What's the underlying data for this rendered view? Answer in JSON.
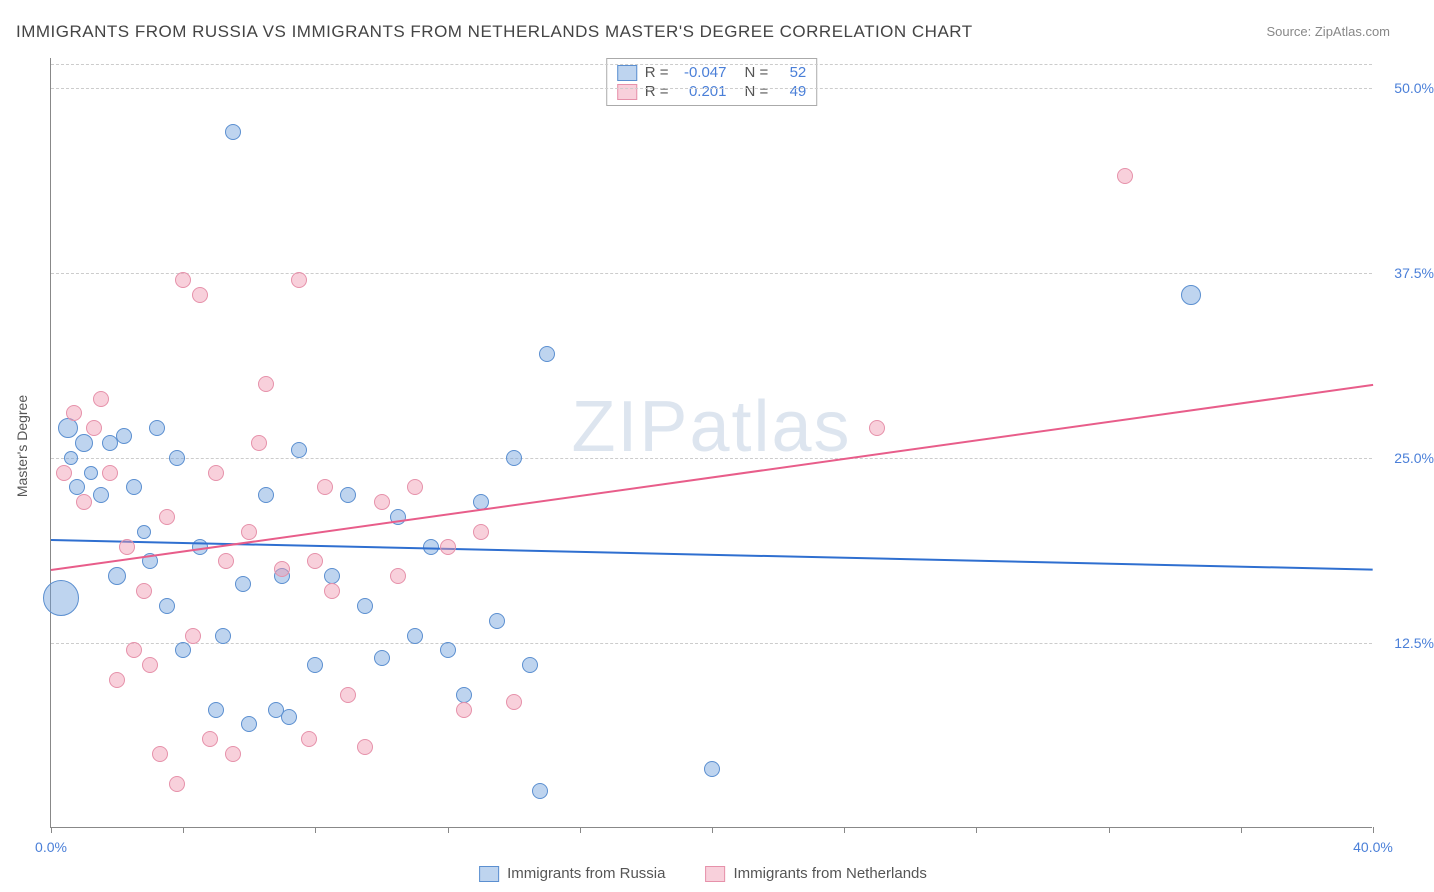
{
  "title": "IMMIGRANTS FROM RUSSIA VS IMMIGRANTS FROM NETHERLANDS MASTER'S DEGREE CORRELATION CHART",
  "source": "Source: ZipAtlas.com",
  "watermark_a": "ZIP",
  "watermark_b": "atlas",
  "y_axis_label": "Master's Degree",
  "chart": {
    "type": "scatter",
    "x_min": 0,
    "x_max": 40,
    "y_min": 0,
    "y_max": 52,
    "x_tick_step": 4,
    "y_ticks": [
      12.5,
      25.0,
      37.5,
      50.0
    ],
    "y_tick_labels": [
      "12.5%",
      "25.0%",
      "37.5%",
      "50.0%"
    ],
    "x_labels_shown": {
      "0": "0.0%",
      "40": "40.0%"
    },
    "grid_color": "#cccccc",
    "axis_color": "#888888",
    "label_color": "#4a7fd8",
    "background_color": "#ffffff",
    "series": [
      {
        "name": "Immigrants from Russia",
        "short": "russia",
        "marker_fill": "rgba(110,160,220,0.45)",
        "marker_stroke": "#5b8fd0",
        "trend_color": "#2f6fd0",
        "R": "-0.047",
        "N": "52",
        "trend": {
          "x1": 0,
          "y1": 19.5,
          "x2": 40,
          "y2": 17.5
        },
        "points": [
          {
            "x": 0.3,
            "y": 15.5,
            "r": 18
          },
          {
            "x": 0.5,
            "y": 27,
            "r": 10
          },
          {
            "x": 0.6,
            "y": 25,
            "r": 7
          },
          {
            "x": 0.8,
            "y": 23,
            "r": 8
          },
          {
            "x": 1.0,
            "y": 26,
            "r": 9
          },
          {
            "x": 1.2,
            "y": 24,
            "r": 7
          },
          {
            "x": 1.5,
            "y": 22.5,
            "r": 8
          },
          {
            "x": 1.8,
            "y": 26,
            "r": 8
          },
          {
            "x": 2.0,
            "y": 17,
            "r": 9
          },
          {
            "x": 2.2,
            "y": 26.5,
            "r": 8
          },
          {
            "x": 2.5,
            "y": 23,
            "r": 8
          },
          {
            "x": 2.8,
            "y": 20,
            "r": 7
          },
          {
            "x": 3.0,
            "y": 18,
            "r": 8
          },
          {
            "x": 3.2,
            "y": 27,
            "r": 8
          },
          {
            "x": 3.5,
            "y": 15,
            "r": 8
          },
          {
            "x": 3.8,
            "y": 25,
            "r": 8
          },
          {
            "x": 4.0,
            "y": 12,
            "r": 8
          },
          {
            "x": 4.5,
            "y": 19,
            "r": 8
          },
          {
            "x": 5.0,
            "y": 8,
            "r": 8
          },
          {
            "x": 5.2,
            "y": 13,
            "r": 8
          },
          {
            "x": 5.5,
            "y": 47,
            "r": 8
          },
          {
            "x": 5.8,
            "y": 16.5,
            "r": 8
          },
          {
            "x": 6.0,
            "y": 7,
            "r": 8
          },
          {
            "x": 6.5,
            "y": 22.5,
            "r": 8
          },
          {
            "x": 6.8,
            "y": 8,
            "r": 8
          },
          {
            "x": 7.0,
            "y": 17,
            "r": 8
          },
          {
            "x": 7.2,
            "y": 7.5,
            "r": 8
          },
          {
            "x": 7.5,
            "y": 25.5,
            "r": 8
          },
          {
            "x": 8.0,
            "y": 11,
            "r": 8
          },
          {
            "x": 8.5,
            "y": 17,
            "r": 8
          },
          {
            "x": 9.0,
            "y": 22.5,
            "r": 8
          },
          {
            "x": 9.5,
            "y": 15,
            "r": 8
          },
          {
            "x": 10.0,
            "y": 11.5,
            "r": 8
          },
          {
            "x": 10.5,
            "y": 21,
            "r": 8
          },
          {
            "x": 11.0,
            "y": 13,
            "r": 8
          },
          {
            "x": 11.5,
            "y": 19,
            "r": 8
          },
          {
            "x": 12.0,
            "y": 12,
            "r": 8
          },
          {
            "x": 12.5,
            "y": 9,
            "r": 8
          },
          {
            "x": 13.0,
            "y": 22,
            "r": 8
          },
          {
            "x": 13.5,
            "y": 14,
            "r": 8
          },
          {
            "x": 14.0,
            "y": 25,
            "r": 8
          },
          {
            "x": 14.5,
            "y": 11,
            "r": 8
          },
          {
            "x": 14.8,
            "y": 2.5,
            "r": 8
          },
          {
            "x": 15.0,
            "y": 32,
            "r": 8
          },
          {
            "x": 20.0,
            "y": 4,
            "r": 8
          },
          {
            "x": 34.5,
            "y": 36,
            "r": 10
          }
        ]
      },
      {
        "name": "Immigrants from Netherlands",
        "short": "netherlands",
        "marker_fill": "rgba(240,150,175,0.45)",
        "marker_stroke": "#e691aa",
        "trend_color": "#e85d8a",
        "R": "0.201",
        "N": "49",
        "trend": {
          "x1": 0,
          "y1": 17.5,
          "x2": 40,
          "y2": 30.0
        },
        "points": [
          {
            "x": 0.4,
            "y": 24,
            "r": 8
          },
          {
            "x": 0.7,
            "y": 28,
            "r": 8
          },
          {
            "x": 1.0,
            "y": 22,
            "r": 8
          },
          {
            "x": 1.3,
            "y": 27,
            "r": 8
          },
          {
            "x": 1.5,
            "y": 29,
            "r": 8
          },
          {
            "x": 1.8,
            "y": 24,
            "r": 8
          },
          {
            "x": 2.0,
            "y": 10,
            "r": 8
          },
          {
            "x": 2.3,
            "y": 19,
            "r": 8
          },
          {
            "x": 2.5,
            "y": 12,
            "r": 8
          },
          {
            "x": 2.8,
            "y": 16,
            "r": 8
          },
          {
            "x": 3.0,
            "y": 11,
            "r": 8
          },
          {
            "x": 3.3,
            "y": 5,
            "r": 8
          },
          {
            "x": 3.5,
            "y": 21,
            "r": 8
          },
          {
            "x": 3.8,
            "y": 3,
            "r": 8
          },
          {
            "x": 4.0,
            "y": 37,
            "r": 8
          },
          {
            "x": 4.3,
            "y": 13,
            "r": 8
          },
          {
            "x": 4.5,
            "y": 36,
            "r": 8
          },
          {
            "x": 4.8,
            "y": 6,
            "r": 8
          },
          {
            "x": 5.0,
            "y": 24,
            "r": 8
          },
          {
            "x": 5.3,
            "y": 18,
            "r": 8
          },
          {
            "x": 5.5,
            "y": 5,
            "r": 8
          },
          {
            "x": 6.0,
            "y": 20,
            "r": 8
          },
          {
            "x": 6.3,
            "y": 26,
            "r": 8
          },
          {
            "x": 6.5,
            "y": 30,
            "r": 8
          },
          {
            "x": 7.0,
            "y": 17.5,
            "r": 8
          },
          {
            "x": 7.5,
            "y": 37,
            "r": 8
          },
          {
            "x": 7.8,
            "y": 6,
            "r": 8
          },
          {
            "x": 8.0,
            "y": 18,
            "r": 8
          },
          {
            "x": 8.3,
            "y": 23,
            "r": 8
          },
          {
            "x": 8.5,
            "y": 16,
            "r": 8
          },
          {
            "x": 9.0,
            "y": 9,
            "r": 8
          },
          {
            "x": 9.5,
            "y": 5.5,
            "r": 8
          },
          {
            "x": 10.0,
            "y": 22,
            "r": 8
          },
          {
            "x": 10.5,
            "y": 17,
            "r": 8
          },
          {
            "x": 11.0,
            "y": 23,
            "r": 8
          },
          {
            "x": 12.0,
            "y": 19,
            "r": 8
          },
          {
            "x": 12.5,
            "y": 8,
            "r": 8
          },
          {
            "x": 13.0,
            "y": 20,
            "r": 8
          },
          {
            "x": 14.0,
            "y": 8.5,
            "r": 8
          },
          {
            "x": 25.0,
            "y": 27,
            "r": 8
          },
          {
            "x": 32.5,
            "y": 44,
            "r": 8
          }
        ]
      }
    ]
  },
  "legend_top": {
    "rows": [
      {
        "swatch": 0,
        "r_label": "R =",
        "r_val": "-0.047",
        "n_label": "N =",
        "n_val": "52"
      },
      {
        "swatch": 1,
        "r_label": "R =",
        "r_val": "0.201",
        "n_label": "N =",
        "n_val": "49"
      }
    ]
  }
}
